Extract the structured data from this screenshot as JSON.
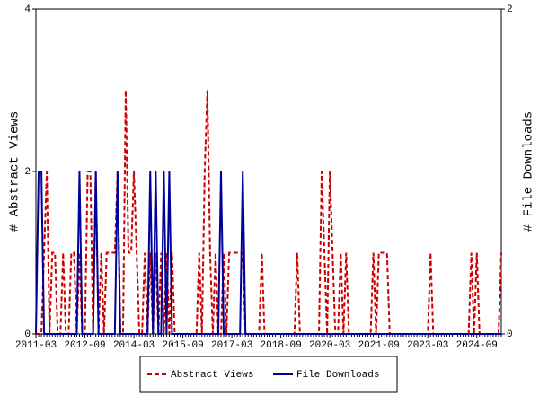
{
  "chart_data": {
    "type": "line",
    "categories": [
      "2011-03",
      null,
      null,
      null,
      null,
      null,
      null,
      null,
      null,
      null,
      null,
      null,
      null,
      null,
      null,
      null,
      null,
      null,
      "2012-09",
      null,
      null,
      null,
      null,
      null,
      null,
      null,
      null,
      null,
      null,
      null,
      null,
      null,
      null,
      null,
      null,
      null,
      "2014-03",
      null,
      null,
      null,
      null,
      null,
      null,
      null,
      null,
      null,
      null,
      null,
      null,
      null,
      null,
      null,
      null,
      null,
      "2015-09",
      null,
      null,
      null,
      null,
      null,
      null,
      null,
      null,
      null,
      null,
      null,
      null,
      null,
      null,
      null,
      null,
      null,
      "2017-03",
      null,
      null,
      null,
      null,
      null,
      null,
      null,
      null,
      null,
      null,
      null,
      null,
      null,
      null,
      null,
      null,
      null,
      "2018-09",
      null,
      null,
      null,
      null,
      null,
      null,
      null,
      null,
      null,
      null,
      null,
      null,
      null,
      null,
      null,
      null,
      null,
      "2020-03",
      null,
      null,
      null,
      null,
      null,
      null,
      null,
      null,
      null,
      null,
      null,
      null,
      null,
      null,
      null,
      null,
      null,
      "2021-09",
      null,
      null,
      null,
      null,
      null,
      null,
      null,
      null,
      null,
      null,
      null,
      null,
      null,
      null,
      null,
      null,
      null,
      "2023-03",
      null,
      null,
      null,
      null,
      null,
      null,
      null,
      null,
      null,
      null,
      null,
      null,
      null,
      null,
      null,
      null,
      null,
      "2024-09",
      null,
      null,
      null,
      null,
      null,
      null,
      null,
      null,
      null
    ],
    "series": [
      {
        "name": "Abstract Views",
        "color": "#cc0000",
        "dash": true,
        "values": [
          0,
          0,
          0,
          1,
          2,
          0,
          1,
          1,
          0,
          0,
          1,
          0,
          0,
          1,
          1,
          0,
          1,
          0,
          0,
          2,
          2,
          0,
          2,
          0,
          1,
          0,
          1,
          1,
          1,
          1,
          2,
          0,
          0,
          3,
          1,
          1,
          2,
          1,
          0,
          0,
          1,
          0,
          1,
          0,
          1,
          0,
          1,
          0,
          1,
          0,
          1,
          0,
          0,
          0,
          0,
          0,
          0,
          0,
          0,
          0,
          1,
          0,
          2,
          3,
          1,
          0,
          1,
          0,
          0,
          1,
          0,
          1,
          1,
          1,
          1,
          1,
          1,
          0,
          0,
          0,
          0,
          0,
          0,
          1,
          0,
          0,
          0,
          0,
          0,
          0,
          0,
          0,
          0,
          0,
          0,
          0,
          1,
          0,
          0,
          0,
          0,
          0,
          0,
          0,
          0,
          2,
          1,
          0,
          2,
          1,
          0,
          0,
          1,
          0,
          1,
          0,
          0,
          0,
          0,
          0,
          0,
          0,
          0,
          0,
          1,
          0,
          1,
          1,
          1,
          1,
          0,
          0,
          0,
          0,
          0,
          0,
          0,
          0,
          0,
          0,
          0,
          0,
          0,
          0,
          0,
          1,
          0,
          0,
          0,
          0,
          0,
          0,
          0,
          0,
          0,
          0,
          0,
          0,
          0,
          0,
          1,
          0,
          1,
          0,
          0,
          0,
          0,
          0,
          0,
          0,
          0,
          1
        ]
      },
      {
        "name": "File Downloads",
        "color": "#000099",
        "dash": false,
        "axis": "y2",
        "values": [
          0,
          1,
          1,
          0,
          0,
          0,
          0,
          0,
          0,
          0,
          0,
          0,
          0,
          0,
          0,
          0,
          1,
          0,
          0,
          0,
          0,
          0,
          1,
          0,
          0,
          0,
          0,
          0,
          0,
          0,
          1,
          0,
          0,
          0,
          0,
          0,
          0,
          0,
          0,
          0,
          0,
          0,
          1,
          0,
          1,
          0,
          0,
          1,
          0,
          1,
          0,
          0,
          0,
          0,
          0,
          0,
          0,
          0,
          0,
          0,
          0,
          0,
          0,
          0,
          0,
          0,
          0,
          0,
          1,
          0,
          0,
          0,
          0,
          0,
          0,
          0,
          1,
          0,
          0,
          0,
          0,
          0,
          0,
          0,
          0,
          0,
          0,
          0,
          0,
          0,
          0,
          0,
          0,
          0,
          0,
          0,
          0,
          0,
          0,
          0,
          0,
          0,
          0,
          0,
          0,
          0,
          0,
          0,
          0,
          0,
          0,
          0,
          0,
          0,
          0,
          0,
          0,
          0,
          0,
          0,
          0,
          0,
          0,
          0,
          0,
          0,
          0,
          0,
          0,
          0,
          0,
          0,
          0,
          0,
          0,
          0,
          0,
          0,
          0,
          0,
          0,
          0,
          0,
          0,
          0,
          0,
          0,
          0,
          0,
          0,
          0,
          0,
          0,
          0,
          0,
          0,
          0,
          0,
          0,
          0,
          0,
          0,
          0,
          0,
          0,
          0,
          0,
          0,
          0,
          0,
          0,
          0
        ]
      }
    ],
    "ylabel": "# Abstract Views",
    "y2label": "# File Downloads",
    "ylim": [
      0,
      4
    ],
    "yticks": [
      0,
      2,
      4
    ],
    "y2lim": [
      0,
      2
    ],
    "y2ticks": [
      0,
      2
    ],
    "legend": "bottom"
  }
}
